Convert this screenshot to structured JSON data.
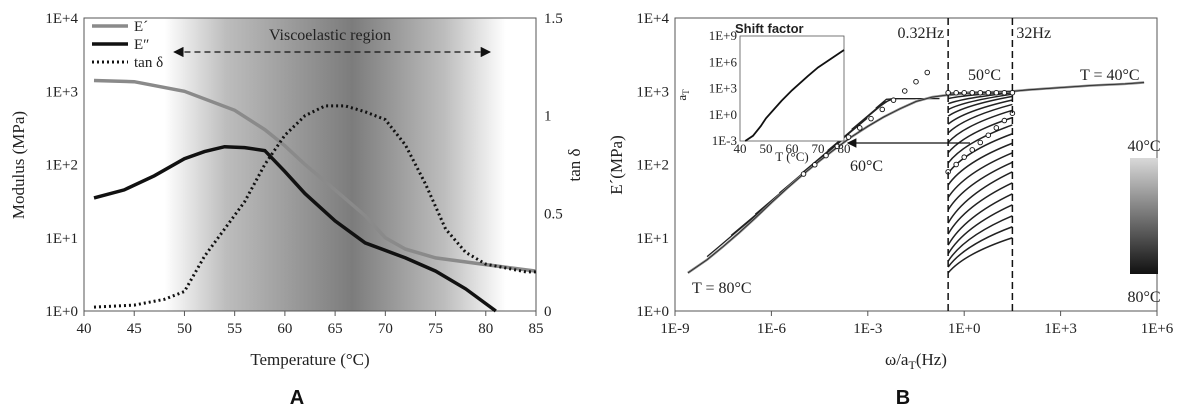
{
  "panels": {
    "a": "A",
    "b": "B"
  },
  "chart_data": [
    {
      "type": "line",
      "panel": "A",
      "xlabel": "Temperature (°C)",
      "ylabel": "Modulus (MPa)",
      "y2label": "tan δ",
      "xlim": [
        40,
        85
      ],
      "ylim": [
        1,
        10000
      ],
      "yscale": "log",
      "y2lim": [
        0,
        1.5
      ],
      "x_ticks": [
        "40",
        "45",
        "50",
        "55",
        "60",
        "65",
        "70",
        "75",
        "80",
        "85"
      ],
      "y_ticks": [
        "1E+0",
        "1E+1",
        "1E+2",
        "1E+3",
        "1E+4"
      ],
      "y2_ticks": [
        "0",
        "0.5",
        "1",
        "1.5"
      ],
      "region_label": "Viscoelastic region",
      "region_range": [
        50,
        80
      ],
      "legend": "top-left",
      "series": [
        {
          "name": "E´",
          "axis": "left",
          "color": "#8a8a8a",
          "x": [
            41,
            45,
            50,
            55,
            58,
            60,
            62,
            65,
            68,
            70,
            72,
            75,
            80,
            85
          ],
          "y": [
            1400,
            1350,
            1000,
            550,
            300,
            180,
            100,
            45,
            20,
            10,
            7,
            5.3,
            4.3,
            3.5
          ]
        },
        {
          "name": "E″",
          "axis": "left",
          "color": "#111111",
          "x": [
            41,
            44,
            47,
            50,
            52,
            54,
            56,
            58,
            60,
            62,
            65,
            68,
            72,
            75,
            78,
            81
          ],
          "y": [
            35,
            45,
            70,
            120,
            150,
            175,
            170,
            155,
            80,
            40,
            17,
            8.5,
            5.3,
            3.5,
            2,
            1
          ]
        },
        {
          "name": "tan δ",
          "axis": "right",
          "color": "#111111",
          "dash": true,
          "x": [
            41,
            45,
            48,
            50,
            52,
            54,
            56,
            58,
            60,
            62,
            64,
            66,
            68,
            70,
            72,
            74,
            76,
            78,
            80,
            82,
            84,
            85
          ],
          "y": [
            0.02,
            0.03,
            0.06,
            0.1,
            0.28,
            0.42,
            0.56,
            0.75,
            0.9,
            1.0,
            1.05,
            1.05,
            1.02,
            0.98,
            0.85,
            0.65,
            0.42,
            0.3,
            0.24,
            0.22,
            0.2,
            0.2
          ]
        }
      ]
    },
    {
      "type": "line",
      "panel": "B",
      "xlabel": "ω/a",
      "xlabel_sub": "T",
      "xlabel_suffix": "(Hz)",
      "ylabel": "E´(MPa)",
      "xscale": "log",
      "yscale": "log",
      "xlim_log10": [
        -9,
        6
      ],
      "ylim_log10": [
        0,
        4
      ],
      "x_ticks": [
        "1E-9",
        "1E-6",
        "1E-3",
        "1E+0",
        "1E+3",
        "1E+6"
      ],
      "y_ticks": [
        "1E+0",
        "1E+1",
        "1E+2",
        "1E+3",
        "1E+4"
      ],
      "freq_marks": [
        {
          "label": "0.32Hz",
          "x_log10": -0.5
        },
        {
          "label": "32Hz",
          "x_log10": 1.5
        }
      ],
      "annotations": {
        "t40": "T = 40°C",
        "t50": "50°C",
        "t60": "60°C",
        "t80": "T = 80°C"
      },
      "colorbar": {
        "top": "40°C",
        "bottom": "80°C"
      },
      "master_curve": {
        "x_log10": [
          -8.6,
          -8,
          -7.5,
          -7,
          -6.5,
          -6,
          -5.5,
          -5,
          -4.5,
          -4,
          -3.5,
          -3,
          -2.5,
          -2,
          -1.5,
          -1,
          -0.5,
          0,
          0.5,
          1,
          1.5,
          2,
          3,
          4,
          5,
          5.6
        ],
        "y_log10": [
          0.52,
          0.7,
          0.88,
          1.07,
          1.27,
          1.48,
          1.68,
          1.87,
          2.05,
          2.22,
          2.38,
          2.52,
          2.65,
          2.76,
          2.86,
          2.92,
          2.95,
          2.97,
          2.98,
          2.99,
          3.0,
          3.02,
          3.05,
          3.08,
          3.1,
          3.12
        ]
      },
      "isotherms_log10_start": [
        0.52,
        0.6,
        0.68,
        0.78,
        0.9,
        1.05,
        1.2,
        1.38,
        1.55,
        1.72,
        1.88,
        2.02,
        2.16,
        2.3,
        2.43,
        2.55,
        2.66,
        2.75,
        2.83,
        2.9,
        2.94,
        2.97
      ],
      "isotherms_log10_end": [
        1.0,
        1.15,
        1.3,
        1.45,
        1.6,
        1.75,
        1.9,
        2.03,
        2.16,
        2.29,
        2.42,
        2.54,
        2.64,
        2.74,
        2.82,
        2.88,
        2.93,
        2.96,
        2.98,
        2.99,
        3.0,
        3.0
      ],
      "inset": {
        "title": "Shift factor",
        "xlabel": "T (°C)",
        "ylabel": "a",
        "ylabel_sub": "T",
        "x_ticks": [
          "40",
          "50",
          "60",
          "70",
          "80"
        ],
        "y_ticks": [
          "1E-3",
          "1E+0",
          "1E+3",
          "1E+6",
          "1E+9"
        ],
        "xlim": [
          40,
          80
        ],
        "ylim_log10": [
          -3,
          9
        ],
        "x": [
          42,
          45,
          48,
          50,
          53,
          56,
          60,
          63,
          66,
          70,
          74,
          78,
          80
        ],
        "y_log10": [
          -3,
          -2.4,
          -1.3,
          -0.4,
          0.6,
          1.6,
          2.8,
          3.6,
          4.4,
          5.4,
          6.2,
          7.0,
          7.4
        ]
      }
    }
  ]
}
